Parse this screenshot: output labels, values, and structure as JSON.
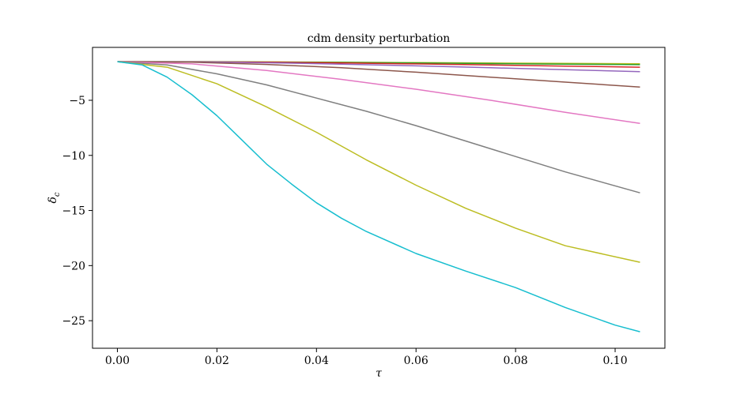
{
  "chart_data": {
    "type": "line",
    "title": "cdm density perturbation",
    "xlabel": "τ",
    "ylabel": "δ",
    "ylabel_sub": "c",
    "xlim": [
      -0.005,
      0.11
    ],
    "ylim": [
      -27.5,
      -0.2
    ],
    "xticks": [
      0.0,
      0.02,
      0.04,
      0.06,
      0.08,
      0.1
    ],
    "xtick_labels": [
      "0.00",
      "0.02",
      "0.04",
      "0.06",
      "0.08",
      "0.10"
    ],
    "yticks": [
      -5,
      -10,
      -15,
      -20,
      -25
    ],
    "ytick_labels": [
      "−5",
      "−10",
      "−15",
      "−20",
      "−25"
    ],
    "grid": false,
    "series": [
      {
        "color": "#bcbd22",
        "x": [
          0,
          0.015,
          0.03,
          0.045,
          0.06,
          0.075,
          0.09,
          0.105
        ],
        "y": [
          -1.5,
          -1.5,
          -1.52,
          -1.55,
          -1.58,
          -1.62,
          -1.65,
          -1.68
        ]
      },
      {
        "color": "#2ca02c",
        "x": [
          0,
          0.015,
          0.03,
          0.045,
          0.06,
          0.075,
          0.09,
          0.105
        ],
        "y": [
          -1.5,
          -1.5,
          -1.53,
          -1.57,
          -1.62,
          -1.67,
          -1.72,
          -1.77
        ]
      },
      {
        "color": "#d62728",
        "x": [
          0,
          0.015,
          0.03,
          0.045,
          0.06,
          0.075,
          0.09,
          0.105
        ],
        "y": [
          -1.5,
          -1.51,
          -1.55,
          -1.62,
          -1.7,
          -1.8,
          -1.9,
          -2.0
        ]
      },
      {
        "color": "#9467bd",
        "x": [
          0,
          0.015,
          0.03,
          0.045,
          0.06,
          0.075,
          0.09,
          0.105
        ],
        "y": [
          -1.5,
          -1.52,
          -1.6,
          -1.72,
          -1.88,
          -2.05,
          -2.22,
          -2.4
        ]
      },
      {
        "color": "#8c564b",
        "x": [
          0,
          0.015,
          0.03,
          0.045,
          0.06,
          0.075,
          0.09,
          0.105
        ],
        "y": [
          -1.5,
          -1.55,
          -1.75,
          -2.05,
          -2.45,
          -2.9,
          -3.35,
          -3.8
        ]
      },
      {
        "color": "#e377c2",
        "x": [
          0,
          0.015,
          0.03,
          0.045,
          0.06,
          0.075,
          0.09,
          0.105
        ],
        "y": [
          -1.5,
          -1.7,
          -2.3,
          -3.1,
          -4.0,
          -5.0,
          -6.1,
          -7.1
        ]
      },
      {
        "color": "#7f7f7f",
        "x": [
          0,
          0.01,
          0.02,
          0.03,
          0.04,
          0.05,
          0.06,
          0.07,
          0.08,
          0.09,
          0.105
        ],
        "y": [
          -1.5,
          -1.8,
          -2.6,
          -3.6,
          -4.8,
          -6.0,
          -7.3,
          -8.7,
          -10.1,
          -11.5,
          -13.4
        ]
      },
      {
        "color": "#bcbd22",
        "x": [
          0,
          0.01,
          0.02,
          0.03,
          0.04,
          0.05,
          0.06,
          0.07,
          0.08,
          0.09,
          0.105
        ],
        "y": [
          -1.5,
          -2.0,
          -3.5,
          -5.6,
          -7.9,
          -10.4,
          -12.7,
          -14.8,
          -16.6,
          -18.2,
          -19.7
        ]
      },
      {
        "color": "#17becf",
        "x": [
          0,
          0.005,
          0.01,
          0.015,
          0.02,
          0.025,
          0.03,
          0.035,
          0.04,
          0.045,
          0.05,
          0.06,
          0.07,
          0.08,
          0.09,
          0.1,
          0.105
        ],
        "y": [
          -1.5,
          -1.8,
          -2.9,
          -4.5,
          -6.4,
          -8.6,
          -10.8,
          -12.6,
          -14.3,
          -15.7,
          -16.9,
          -18.9,
          -20.5,
          -22.0,
          -23.8,
          -25.4,
          -26.0
        ]
      }
    ]
  }
}
